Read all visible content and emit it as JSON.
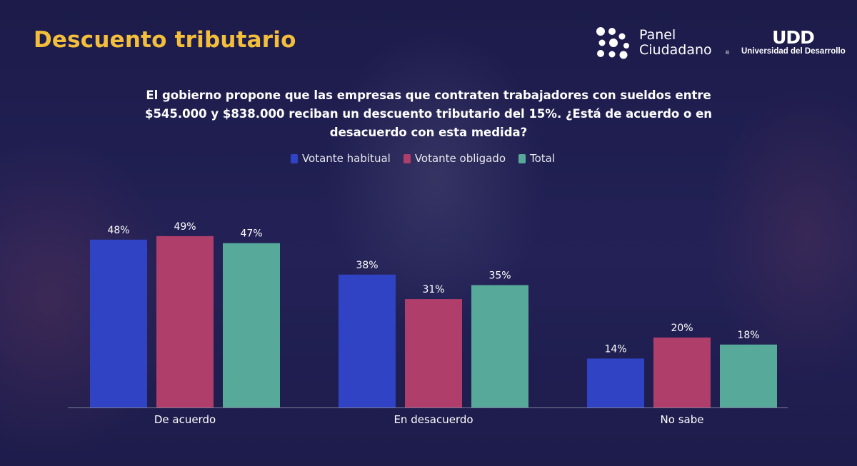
{
  "header": {
    "title": "Descuento tributario",
    "logo_panel_line1": "Panel",
    "logo_panel_line2": "Ciudadano",
    "logo_panel_reg": "®",
    "logo_udd_mark": "UDD",
    "logo_udd_name": "Universidad del Desarrollo"
  },
  "question_lines": [
    "El gobierno propone que las empresas que contraten trabajadores con sueldos entre",
    "$545.000 y $838.000 reciban un descuento tributario del 15%. ¿Está de acuerdo o en",
    "desacuerdo con esta medida?"
  ],
  "colors": {
    "title": "#f3be3b",
    "series": [
      "#2f43c4",
      "#b03e6b",
      "#57a99a"
    ],
    "axis": "#7a7a9a"
  },
  "chart_data": {
    "type": "bar",
    "title": "El gobierno propone que las empresas que contraten trabajadores con sueldos entre $545.000 y $838.000 reciban un descuento tributario del 15%. ¿Está de acuerdo o en desacuerdo con esta medida?",
    "categories": [
      "De acuerdo",
      "En desacuerdo",
      "No sabe"
    ],
    "series": [
      {
        "name": "Votante habitual",
        "values": [
          48,
          38,
          14
        ],
        "labels": [
          "48%",
          "38%",
          "14%"
        ]
      },
      {
        "name": "Votante obligado",
        "values": [
          49,
          31,
          20
        ],
        "labels": [
          "49%",
          "31%",
          "20%"
        ]
      },
      {
        "name": "Total",
        "values": [
          47,
          35,
          18
        ],
        "labels": [
          "47%",
          "35%",
          "18%"
        ]
      }
    ],
    "xlabel": "",
    "ylabel": "",
    "ylim": [
      0,
      100
    ],
    "unit": "%",
    "legend_position": "top-center",
    "grid": false
  }
}
